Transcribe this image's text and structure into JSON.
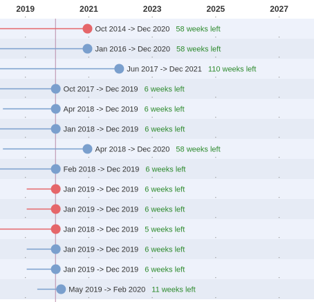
{
  "colors": {
    "stripe_light": "#eef2fb",
    "stripe_dark": "#e6ebf5",
    "red": "#e5666a",
    "blue": "#7a9fcd",
    "green": "#2e8b2e",
    "today_line": "#b98aa8",
    "dot_grid": "#999999"
  },
  "chart_data": {
    "type": "timeline",
    "axis": {
      "ticks": [
        "2019",
        "2021",
        "2023",
        "2025",
        "2027"
      ],
      "tick_years": [
        2019,
        2021,
        2023,
        2025,
        2027
      ],
      "xlim": [
        2018.2,
        2028.1
      ],
      "reference_line_year": 2019.95
    },
    "rows": [
      {
        "start": "Oct 2014",
        "end": "Dec 2020",
        "weeks_left": "58",
        "color": "red",
        "text": "Oct 2014 -> Dec 2020",
        "left_text": "58  weeks left"
      },
      {
        "start": "Jan 2016",
        "end": "Dec 2020",
        "weeks_left": "58",
        "color": "blue",
        "text": "Jan 2016 -> Dec 2020",
        "left_text": "58  weeks left"
      },
      {
        "start": "Jun 2017",
        "end": "Dec 2021",
        "weeks_left": "110",
        "color": "blue",
        "text": "Jun 2017 -> Dec 2021",
        "left_text": "110  weeks left"
      },
      {
        "start": "Oct 2017",
        "end": "Dec 2019",
        "weeks_left": "6",
        "color": "blue",
        "text": "Oct 2017 -> Dec 2019",
        "left_text": "6  weeks left"
      },
      {
        "start": "Apr 2018",
        "end": "Dec 2019",
        "weeks_left": "6",
        "color": "blue",
        "text": "Apr 2018 -> Dec 2019",
        "left_text": "6  weeks left"
      },
      {
        "start": "Jan 2018",
        "end": "Dec 2019",
        "weeks_left": "6",
        "color": "blue",
        "text": "Jan 2018 -> Dec 2019",
        "left_text": "6  weeks left"
      },
      {
        "start": "Apr 2018",
        "end": "Dec 2020",
        "weeks_left": "58",
        "color": "blue",
        "text": "Apr 2018 -> Dec 2020",
        "left_text": "58  weeks left"
      },
      {
        "start": "Feb 2018",
        "end": "Dec 2019",
        "weeks_left": "6",
        "color": "blue",
        "text": "Feb 2018 -> Dec 2019",
        "left_text": "6  weeks left"
      },
      {
        "start": "Jan 2019",
        "end": "Dec 2019",
        "weeks_left": "6",
        "color": "red",
        "text": "Jan 2019 -> Dec 2019",
        "left_text": "6  weeks left"
      },
      {
        "start": "Jan 2019",
        "end": "Dec 2019",
        "weeks_left": "6",
        "color": "red",
        "text": "Jan 2019 -> Dec 2019",
        "left_text": "6  weeks left"
      },
      {
        "start": "Jan 2018",
        "end": "Dec 2019",
        "weeks_left": "5",
        "color": "red",
        "text": "Jan 2018 -> Dec 2019",
        "left_text": "5  weeks left"
      },
      {
        "start": "Jan 2019",
        "end": "Dec 2019",
        "weeks_left": "6",
        "color": "blue",
        "text": "Jan 2019 -> Dec 2019",
        "left_text": "6  weeks left"
      },
      {
        "start": "Jan 2019",
        "end": "Dec 2019",
        "weeks_left": "6",
        "color": "blue",
        "text": "Jan 2019 -> Dec 2019",
        "left_text": "6  weeks left"
      },
      {
        "start": "May 2019",
        "end": "Feb 2020",
        "weeks_left": "11",
        "color": "blue",
        "text": "May 2019 -> Feb 2020",
        "left_text": "11  weeks left"
      }
    ]
  }
}
